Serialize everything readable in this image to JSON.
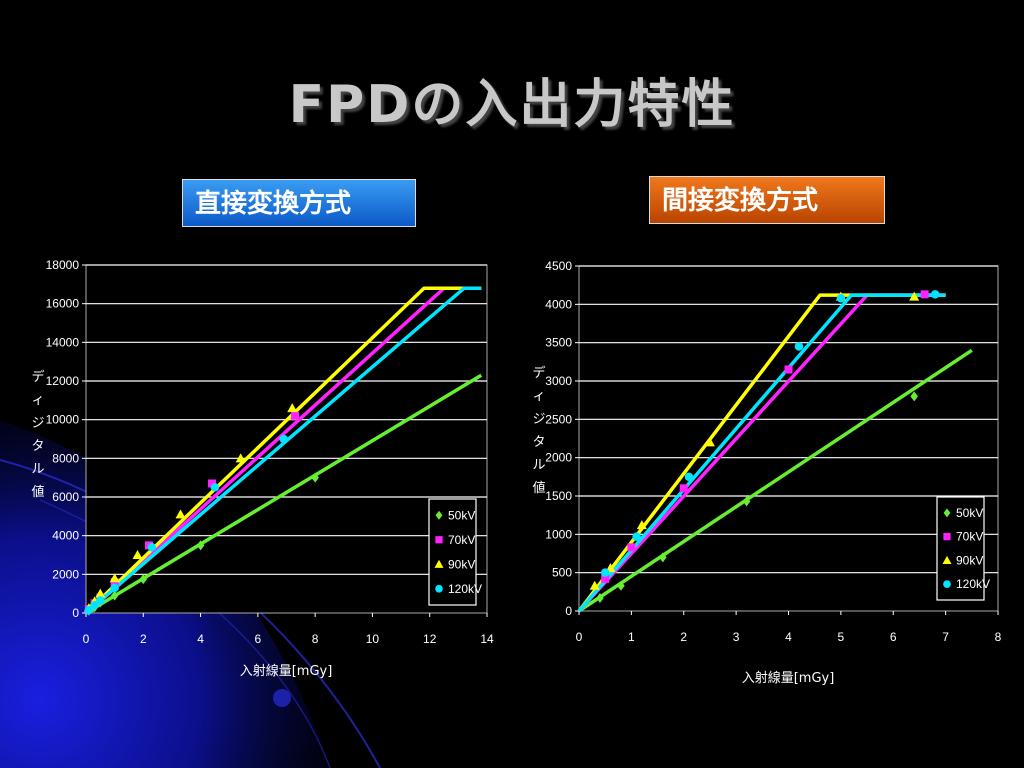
{
  "slide": {
    "title": "FPDの入出力特性",
    "label_direct": "直接変換方式",
    "label_indirect": "間接変換方式"
  },
  "colors": {
    "50kV": "#66ee33",
    "70kV": "#ff22ff",
    "90kV": "#ffff00",
    "120kV": "#00e5ff"
  },
  "chart_data": [
    {
      "type": "scatter",
      "title": "",
      "xlabel": "入射線量[mGy]",
      "ylabel": "ディジタル値",
      "xlim": [
        0,
        14
      ],
      "ylim": [
        0,
        18000
      ],
      "xticks": [
        "0",
        "2",
        "4",
        "6",
        "8",
        "10",
        "12",
        "14"
      ],
      "yticks": [
        "0",
        "2000",
        "4000",
        "6000",
        "8000",
        "10000",
        "12000",
        "14000",
        "16000",
        "18000"
      ],
      "grid": true,
      "legend": "bottom-right",
      "series": [
        {
          "name": "50kV",
          "marker": "diamond",
          "points": [
            [
              0.1,
              120
            ],
            [
              0.3,
              300
            ],
            [
              0.5,
              550
            ],
            [
              1.0,
              900
            ],
            [
              2.0,
              1750
            ],
            [
              4.0,
              3500
            ],
            [
              8.0,
              7000
            ]
          ],
          "fit": [
            [
              0,
              0
            ],
            [
              13.8,
              12300
            ]
          ]
        },
        {
          "name": "70kV",
          "marker": "square",
          "points": [
            [
              0.1,
              200
            ],
            [
              0.3,
              500
            ],
            [
              0.5,
              800
            ],
            [
              1.0,
              1600
            ],
            [
              2.2,
              3500
            ],
            [
              4.4,
              6700
            ],
            [
              7.3,
              10200
            ]
          ],
          "fit": [
            [
              0,
              0
            ],
            [
              12.5,
              16800
            ],
            [
              13.8,
              16800
            ]
          ]
        },
        {
          "name": "90kV",
          "marker": "triangle",
          "points": [
            [
              0.1,
              250
            ],
            [
              0.3,
              600
            ],
            [
              0.5,
              1000
            ],
            [
              1.0,
              1800
            ],
            [
              1.8,
              3000
            ],
            [
              3.3,
              5100
            ],
            [
              5.4,
              8000
            ],
            [
              7.2,
              10600
            ]
          ],
          "fit": [
            [
              0,
              0
            ],
            [
              11.8,
              16800
            ],
            [
              13.8,
              16800
            ]
          ]
        },
        {
          "name": "120kV",
          "marker": "circle",
          "points": [
            [
              0.1,
              150
            ],
            [
              0.3,
              400
            ],
            [
              0.5,
              650
            ],
            [
              1.0,
              1300
            ],
            [
              2.3,
              3400
            ],
            [
              4.5,
              6500
            ],
            [
              6.9,
              9000
            ]
          ],
          "fit": [
            [
              0,
              0
            ],
            [
              13.2,
              16800
            ],
            [
              13.8,
              16800
            ]
          ]
        }
      ]
    },
    {
      "type": "scatter",
      "title": "",
      "xlabel": "入射線量[mGy]",
      "ylabel": "ディジタル値",
      "xlim": [
        0,
        8
      ],
      "ylim": [
        0,
        4500
      ],
      "xticks": [
        "0",
        "1",
        "2",
        "3",
        "4",
        "5",
        "6",
        "7",
        "8"
      ],
      "yticks": [
        "0",
        "500",
        "1000",
        "1500",
        "2000",
        "2500",
        "3000",
        "3500",
        "4000",
        "4500"
      ],
      "grid": true,
      "legend": "bottom-right",
      "series": [
        {
          "name": "50kV",
          "marker": "diamond",
          "points": [
            [
              0.4,
              170
            ],
            [
              0.8,
              330
            ],
            [
              1.6,
              700
            ],
            [
              3.2,
              1430
            ],
            [
              6.4,
              2800
            ]
          ],
          "fit": [
            [
              0,
              0
            ],
            [
              7.5,
              3400
            ]
          ]
        },
        {
          "name": "70kV",
          "marker": "square",
          "points": [
            [
              0.5,
              420
            ],
            [
              1.0,
              830
            ],
            [
              2.0,
              1600
            ],
            [
              4.0,
              3150
            ],
            [
              6.6,
              4130
            ]
          ],
          "fit": [
            [
              0,
              0
            ],
            [
              5.5,
              4120
            ],
            [
              7.0,
              4120
            ]
          ]
        },
        {
          "name": "90kV",
          "marker": "triangle",
          "points": [
            [
              0.3,
              330
            ],
            [
              0.6,
              560
            ],
            [
              1.2,
              1120
            ],
            [
              2.5,
              2200
            ],
            [
              5.0,
              4100
            ],
            [
              6.4,
              4100
            ]
          ],
          "fit": [
            [
              0,
              0
            ],
            [
              4.6,
              4120
            ],
            [
              7.0,
              4120
            ]
          ]
        },
        {
          "name": "120kV",
          "marker": "circle",
          "points": [
            [
              0.5,
              500
            ],
            [
              1.1,
              970
            ],
            [
              2.1,
              1750
            ],
            [
              4.2,
              3450
            ],
            [
              5.0,
              4080
            ],
            [
              6.8,
              4130
            ]
          ],
          "fit": [
            [
              0,
              0
            ],
            [
              5.2,
              4120
            ],
            [
              7.0,
              4120
            ]
          ]
        }
      ]
    }
  ]
}
